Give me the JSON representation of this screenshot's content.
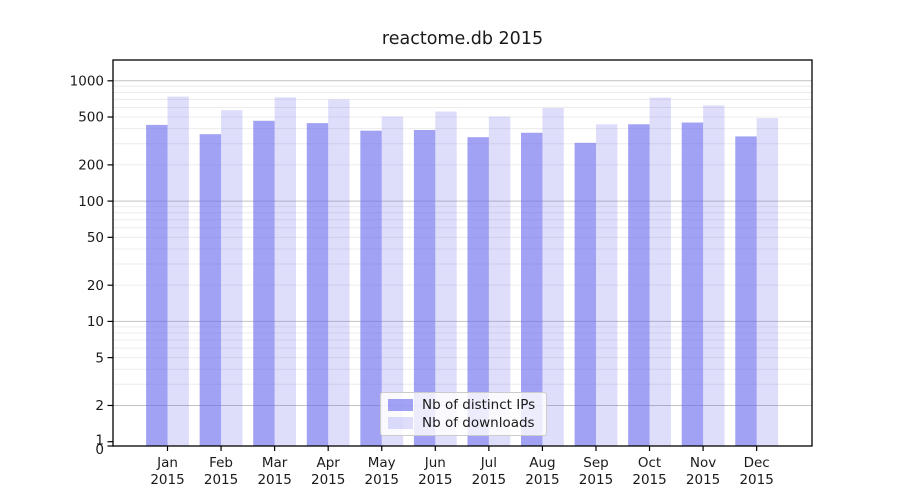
{
  "title": "reactome.db 2015",
  "chart_data": {
    "type": "bar",
    "title": "reactome.db 2015",
    "xlabel": "",
    "ylabel": "",
    "yscale": "log",
    "grid": true,
    "legend_position": "inside-bottom-center",
    "categories": [
      "Jan",
      "Feb",
      "Mar",
      "Apr",
      "May",
      "Jun",
      "Jul",
      "Aug",
      "Sep",
      "Oct",
      "Nov",
      "Dec"
    ],
    "category_year": "2015",
    "series": [
      {
        "name": "Nb of distinct IPs",
        "color": "rgba(105,105,237,0.62)",
        "values": [
          430,
          360,
          465,
          445,
          385,
          390,
          340,
          370,
          305,
          435,
          450,
          345
        ]
      },
      {
        "name": "Nb of downloads",
        "color": "rgba(105,105,237,0.22)",
        "values": [
          740,
          570,
          730,
          700,
          505,
          555,
          505,
          595,
          435,
          725,
          625,
          490
        ]
      }
    ],
    "ytick_labels": [
      1000,
      500,
      200,
      100,
      50,
      20,
      10,
      5,
      2,
      1,
      0
    ],
    "ylim": [
      0,
      1450
    ],
    "major_gridline_values": [
      1000,
      100,
      10,
      2
    ]
  },
  "colors": {
    "background": "#ffffff",
    "bar_dark": "rgba(105,105,237,0.62)",
    "bar_light": "rgba(105,105,237,0.22)",
    "major_grid": "#c2c2c2",
    "minor_grid": "#ececec",
    "spine": "#000000",
    "text": "#1a1a1a"
  }
}
